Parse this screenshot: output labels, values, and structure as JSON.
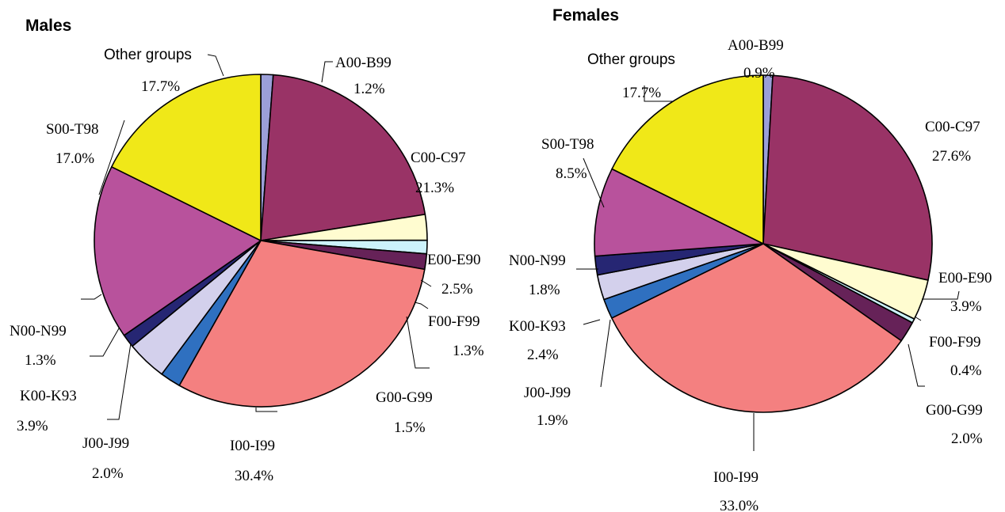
{
  "chart_data": [
    {
      "type": "pie",
      "title": "Males",
      "start_angle_deg": 0,
      "direction": "clockwise",
      "slices": [
        {
          "label": "A00-B99",
          "value": 1.2,
          "value_label": "1.2%",
          "color": "#9b9fd8"
        },
        {
          "label": "C00-C97",
          "value": 21.3,
          "value_label": "21.3%",
          "color": "#993366"
        },
        {
          "label": "E00-E90",
          "value": 2.5,
          "value_label": "2.5%",
          "color": "#fffcd0"
        },
        {
          "label": "F00-F99",
          "value": 1.3,
          "value_label": "1.3%",
          "color": "#ccf2fb"
        },
        {
          "label": "G00-G99",
          "value": 1.5,
          "value_label": "1.5%",
          "color": "#662258"
        },
        {
          "label": "I00-I99",
          "value": 30.4,
          "value_label": "30.4%",
          "color": "#f48080"
        },
        {
          "label": "J00-J99",
          "value": 2.0,
          "value_label": "2.0%",
          "color": "#2f70c0"
        },
        {
          "label": "K00-K93",
          "value": 3.9,
          "value_label": "3.9%",
          "color": "#d3d0ec"
        },
        {
          "label": "N00-N99",
          "value": 1.3,
          "value_label": "1.3%",
          "color": "#262673"
        },
        {
          "label": "S00-T98",
          "value": 17.0,
          "value_label": "17.0%",
          "color": "#b8529c"
        },
        {
          "label": "Other groups",
          "value": 17.7,
          "value_label": "17.7%",
          "color": "#f0e818"
        }
      ]
    },
    {
      "type": "pie",
      "title": "Females",
      "start_angle_deg": 0,
      "direction": "clockwise",
      "slices": [
        {
          "label": "A00-B99",
          "value": 0.9,
          "value_label": "0.9%",
          "color": "#9b9fd8"
        },
        {
          "label": "C00-C97",
          "value": 27.6,
          "value_label": "27.6%",
          "color": "#993366"
        },
        {
          "label": "E00-E90",
          "value": 3.9,
          "value_label": "3.9%",
          "color": "#fffcd0"
        },
        {
          "label": "F00-F99",
          "value": 0.4,
          "value_label": "0.4%",
          "color": "#ccf2fb"
        },
        {
          "label": "G00-G99",
          "value": 2.0,
          "value_label": "2.0%",
          "color": "#662258"
        },
        {
          "label": "I00-I99",
          "value": 33.0,
          "value_label": "33.0%",
          "color": "#f48080"
        },
        {
          "label": "J00-J99",
          "value": 1.9,
          "value_label": "1.9%",
          "color": "#2f70c0"
        },
        {
          "label": "K00-K93",
          "value": 2.4,
          "value_label": "2.4%",
          "color": "#d3d0ec"
        },
        {
          "label": "N00-N99",
          "value": 1.8,
          "value_label": "1.8%",
          "color": "#262673"
        },
        {
          "label": "S00-T98",
          "value": 8.5,
          "value_label": "8.5%",
          "color": "#b8529c"
        },
        {
          "label": "Other groups",
          "value": 17.7,
          "value_label": "17.7%",
          "color": "#f0e818"
        }
      ]
    }
  ]
}
